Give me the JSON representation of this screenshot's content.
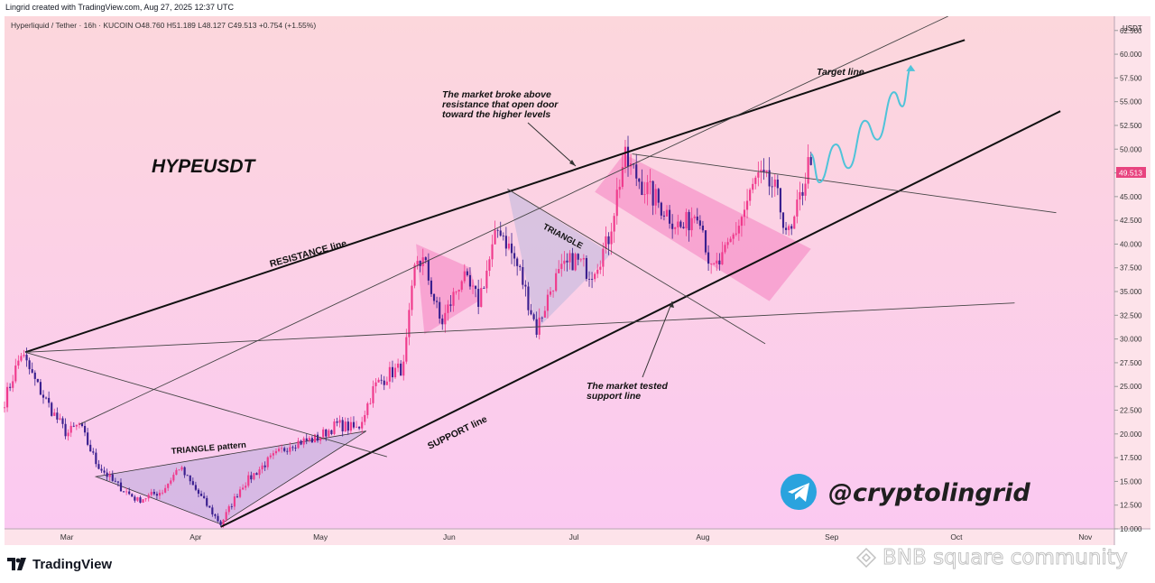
{
  "header": {
    "credit": "Lingrid created with TradingView.com, Aug 27, 2025 12:37 UTC"
  },
  "chart_data": {
    "type": "candlestick",
    "symbol_line": "Hyperliquid / Tether · 16h · KUCOIN  O48.760  H51.189  L48.127  C49.513  +0.754 (+1.55%)",
    "currency_label": "USDT",
    "last_price_label": "49.513",
    "last_price": 49.513,
    "y_ticks": [
      "62.500",
      "60.000",
      "57.500",
      "55.000",
      "52.500",
      "50.000",
      "47.500",
      "45.000",
      "42.500",
      "40.000",
      "37.500",
      "35.000",
      "32.500",
      "30.000",
      "27.500",
      "25.000",
      "22.500",
      "20.000",
      "17.500",
      "15.000",
      "12.500",
      "10.000"
    ],
    "y_range": [
      10.0,
      64.0
    ],
    "x_ticks": [
      "Mar",
      "Apr",
      "May",
      "Jun",
      "Jul",
      "Aug",
      "Sep",
      "Oct",
      "Nov"
    ],
    "x_range": [
      "2025-02-14",
      "2025-11-08"
    ],
    "price_path_anchors": [
      [
        "2025-02-14",
        23.5
      ],
      [
        "2025-02-18",
        28.5
      ],
      [
        "2025-02-22",
        25.0
      ],
      [
        "2025-02-26",
        22.0
      ],
      [
        "2025-03-01",
        20.0
      ],
      [
        "2025-03-04",
        21.0
      ],
      [
        "2025-03-08",
        17.0
      ],
      [
        "2025-03-12",
        15.0
      ],
      [
        "2025-03-18",
        13.0
      ],
      [
        "2025-03-24",
        14.0
      ],
      [
        "2025-03-28",
        16.5
      ],
      [
        "2025-04-02",
        13.5
      ],
      [
        "2025-04-07",
        10.5
      ],
      [
        "2025-04-12",
        14.5
      ],
      [
        "2025-04-18",
        17.0
      ],
      [
        "2025-04-24",
        19.0
      ],
      [
        "2025-04-30",
        19.5
      ],
      [
        "2025-05-05",
        21.0
      ],
      [
        "2025-05-10",
        20.5
      ],
      [
        "2025-05-14",
        25.0
      ],
      [
        "2025-05-18",
        26.5
      ],
      [
        "2025-05-21",
        27.0
      ],
      [
        "2025-05-24",
        38.5
      ],
      [
        "2025-05-26",
        38.0
      ],
      [
        "2025-05-30",
        31.5
      ],
      [
        "2025-06-04",
        36.5
      ],
      [
        "2025-06-08",
        34.0
      ],
      [
        "2025-06-13",
        42.0
      ],
      [
        "2025-06-18",
        37.0
      ],
      [
        "2025-06-22",
        31.0
      ],
      [
        "2025-06-26",
        36.0
      ],
      [
        "2025-07-01",
        38.5
      ],
      [
        "2025-07-05",
        37.0
      ],
      [
        "2025-07-09",
        40.0
      ],
      [
        "2025-07-13",
        49.0
      ],
      [
        "2025-07-18",
        46.0
      ],
      [
        "2025-07-23",
        43.5
      ],
      [
        "2025-07-27",
        41.5
      ],
      [
        "2025-07-31",
        44.0
      ],
      [
        "2025-08-03",
        37.0
      ],
      [
        "2025-08-06",
        38.5
      ],
      [
        "2025-08-10",
        42.5
      ],
      [
        "2025-08-14",
        47.0
      ],
      [
        "2025-08-18",
        46.0
      ],
      [
        "2025-08-22",
        40.5
      ],
      [
        "2025-08-27",
        49.5
      ]
    ],
    "projection": {
      "label": "Target line",
      "points": [
        [
          "2025-08-27",
          49.5
        ],
        [
          "2025-08-29",
          46.5
        ],
        [
          "2025-09-02",
          50.5
        ],
        [
          "2025-09-05",
          48.0
        ],
        [
          "2025-09-09",
          53.0
        ],
        [
          "2025-09-12",
          51.0
        ],
        [
          "2025-09-16",
          56.0
        ],
        [
          "2025-09-18",
          54.5
        ],
        [
          "2025-09-20",
          58.5
        ]
      ]
    },
    "trend_lines": [
      {
        "name": "resistance",
        "from": [
          "2025-02-19",
          28.6
        ],
        "to": [
          "2025-10-03",
          61.5
        ]
      },
      {
        "name": "support",
        "from": [
          "2025-04-07",
          10.2
        ],
        "to": [
          "2025-10-26",
          54.0
        ]
      },
      {
        "name": "upper-channel",
        "from": [
          "2025-03-04",
          21.0
        ],
        "to": [
          "2025-09-29",
          64.0
        ]
      },
      {
        "name": "flat-line",
        "from": [
          "2025-02-19",
          28.6
        ],
        "to": [
          "2025-10-15",
          33.8
        ]
      },
      {
        "name": "mar-apr-descending",
        "from": [
          "2025-02-19",
          28.6
        ],
        "to": [
          "2025-05-17",
          17.6
        ]
      },
      {
        "name": "triangle-descending",
        "from": [
          "2025-06-15",
          45.8
        ],
        "to": [
          "2025-08-16",
          29.5
        ]
      },
      {
        "name": "jul-aug-descending",
        "from": [
          "2025-07-15",
          49.5
        ],
        "to": [
          "2025-10-25",
          43.3
        ]
      }
    ],
    "patterns": [
      {
        "name": "triangle-pattern",
        "label": "TRIANGLE pattern",
        "points": [
          [
            "2025-03-08",
            15.5
          ],
          [
            "2025-04-07",
            10.5
          ],
          [
            "2025-05-12",
            20.3
          ]
        ]
      },
      {
        "name": "may-flag",
        "points": [
          [
            "2025-05-24",
            40.0
          ],
          [
            "2025-06-06",
            37.5
          ],
          [
            "2025-06-08",
            34.0
          ],
          [
            "2025-05-26",
            30.5
          ]
        ]
      },
      {
        "name": "june-triangle",
        "label": "TRIANGLE",
        "points": [
          [
            "2025-06-15",
            45.8
          ],
          [
            "2025-07-10",
            39.0
          ],
          [
            "2025-06-22",
            31.0
          ]
        ]
      },
      {
        "name": "jul-aug-channel",
        "points": [
          [
            "2025-07-13",
            49.5
          ],
          [
            "2025-08-27",
            39.5
          ],
          [
            "2025-08-17",
            34.0
          ],
          [
            "2025-07-06",
            45.5
          ]
        ]
      }
    ],
    "annotations": {
      "ticker": "HYPEUSDT",
      "resistance_label": "RESISTANCE line",
      "support_label": "SUPPORT line",
      "broke_note": [
        "The market broke above",
        "resistance that open door",
        "toward the higher levels"
      ],
      "tested_note": [
        "The market tested",
        "support line"
      ]
    }
  },
  "branding": {
    "handle": "@cryptolingrid",
    "tradingview": "TradingView",
    "watermark": "BNB square community"
  },
  "colors": {
    "bull": "#f03a8c",
    "bear": "#3a1f8f",
    "line": "#111111",
    "thin_line": "#444444",
    "projection": "#4fc3d9",
    "last_price_bg": "#e8437f",
    "telegram": "#2aa3de",
    "bg_top": "#fcd6dc",
    "bg_bottom": "#fbc8f0"
  }
}
